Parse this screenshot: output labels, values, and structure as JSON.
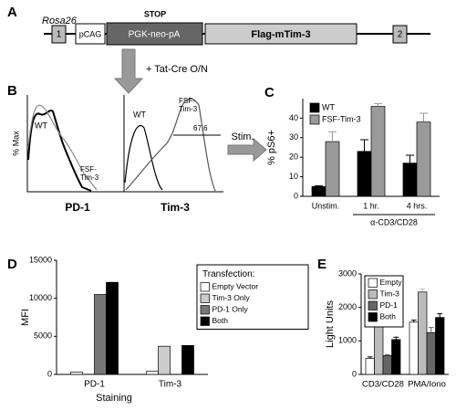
{
  "panel_labels": [
    "A",
    "B",
    "C",
    "D",
    "E"
  ],
  "construct": {
    "locus": "Rosa26",
    "exon1": "1",
    "promoter": "pCAG",
    "stop_label": "STOP",
    "cassette": "PGK-neo-pA",
    "transgene": "Flag-mTim-3",
    "exon2": "2",
    "treatment": "+ Tat-Cre O/N"
  },
  "flow": {
    "y_label": "% Max",
    "arrow_label": "Stim.",
    "plots": [
      {
        "x_label": "PD-1",
        "wt": "WT",
        "fsf": [
          "FSF-",
          "Tim-3"
        ]
      },
      {
        "x_label": "Tim-3",
        "wt": "WT",
        "fsf": [
          "FSF-",
          "Tim-3"
        ],
        "gate": 67.6
      }
    ]
  },
  "chart_data": [
    {
      "type": "bar",
      "y_label": "% pS6+",
      "categories": [
        "Unstim.",
        "1 hr.",
        "4 hrs."
      ],
      "group_label": "α-CD3/CD28",
      "series": [
        {
          "name": "WT",
          "color": "#000000",
          "values": [
            5,
            23,
            17
          ],
          "errors": [
            0.4,
            6,
            4
          ]
        },
        {
          "name": "FSF-Tim-3",
          "color": "#9a9a9a",
          "values": [
            28,
            46,
            38
          ],
          "errors": [
            5,
            1.5,
            4.5
          ]
        }
      ],
      "ylim": [
        0,
        50
      ],
      "yticks": [
        0,
        10,
        20,
        30,
        40
      ],
      "legend": "upper left"
    },
    {
      "type": "bar",
      "x_label": "Staining",
      "y_label": "MFI",
      "legend_title": "Transfection:",
      "categories": [
        "PD-1",
        "Tim-3"
      ],
      "series": [
        {
          "name": "Empty Vector",
          "color": "#ffffff",
          "values": [
            300,
            400
          ]
        },
        {
          "name": "Tim-3 Only",
          "color": "#cccccc",
          "values": [
            0,
            3700
          ]
        },
        {
          "name": "PD-1 Only",
          "color": "#777777",
          "values": [
            10500,
            0
          ]
        },
        {
          "name": "Both",
          "color": "#000000",
          "values": [
            12100,
            3800
          ]
        }
      ],
      "ylim": [
        0,
        15000
      ],
      "yticks": [
        0,
        5000,
        10000,
        15000
      ],
      "legend": "upper right"
    },
    {
      "type": "bar",
      "y_label": "Light Units",
      "categories": [
        "CD3/CD28",
        "PMA/Iono"
      ],
      "series": [
        {
          "name": "Empty",
          "color": "#ffffff",
          "values": [
            480,
            1560
          ],
          "errors": [
            40,
            60
          ]
        },
        {
          "name": "Tim-3",
          "color": "#bbbbbb",
          "values": [
            1580,
            2460
          ],
          "errors": [
            60,
            90
          ]
        },
        {
          "name": "PD-1",
          "color": "#666666",
          "values": [
            560,
            1250
          ],
          "errors": [
            30,
            150
          ]
        },
        {
          "name": "Both",
          "color": "#000000",
          "values": [
            1040,
            1700
          ],
          "errors": [
            70,
            110
          ]
        }
      ],
      "ylim": [
        0,
        3000
      ],
      "yticks": [
        0,
        1000,
        2000,
        3000
      ],
      "legend": "upper left"
    }
  ]
}
